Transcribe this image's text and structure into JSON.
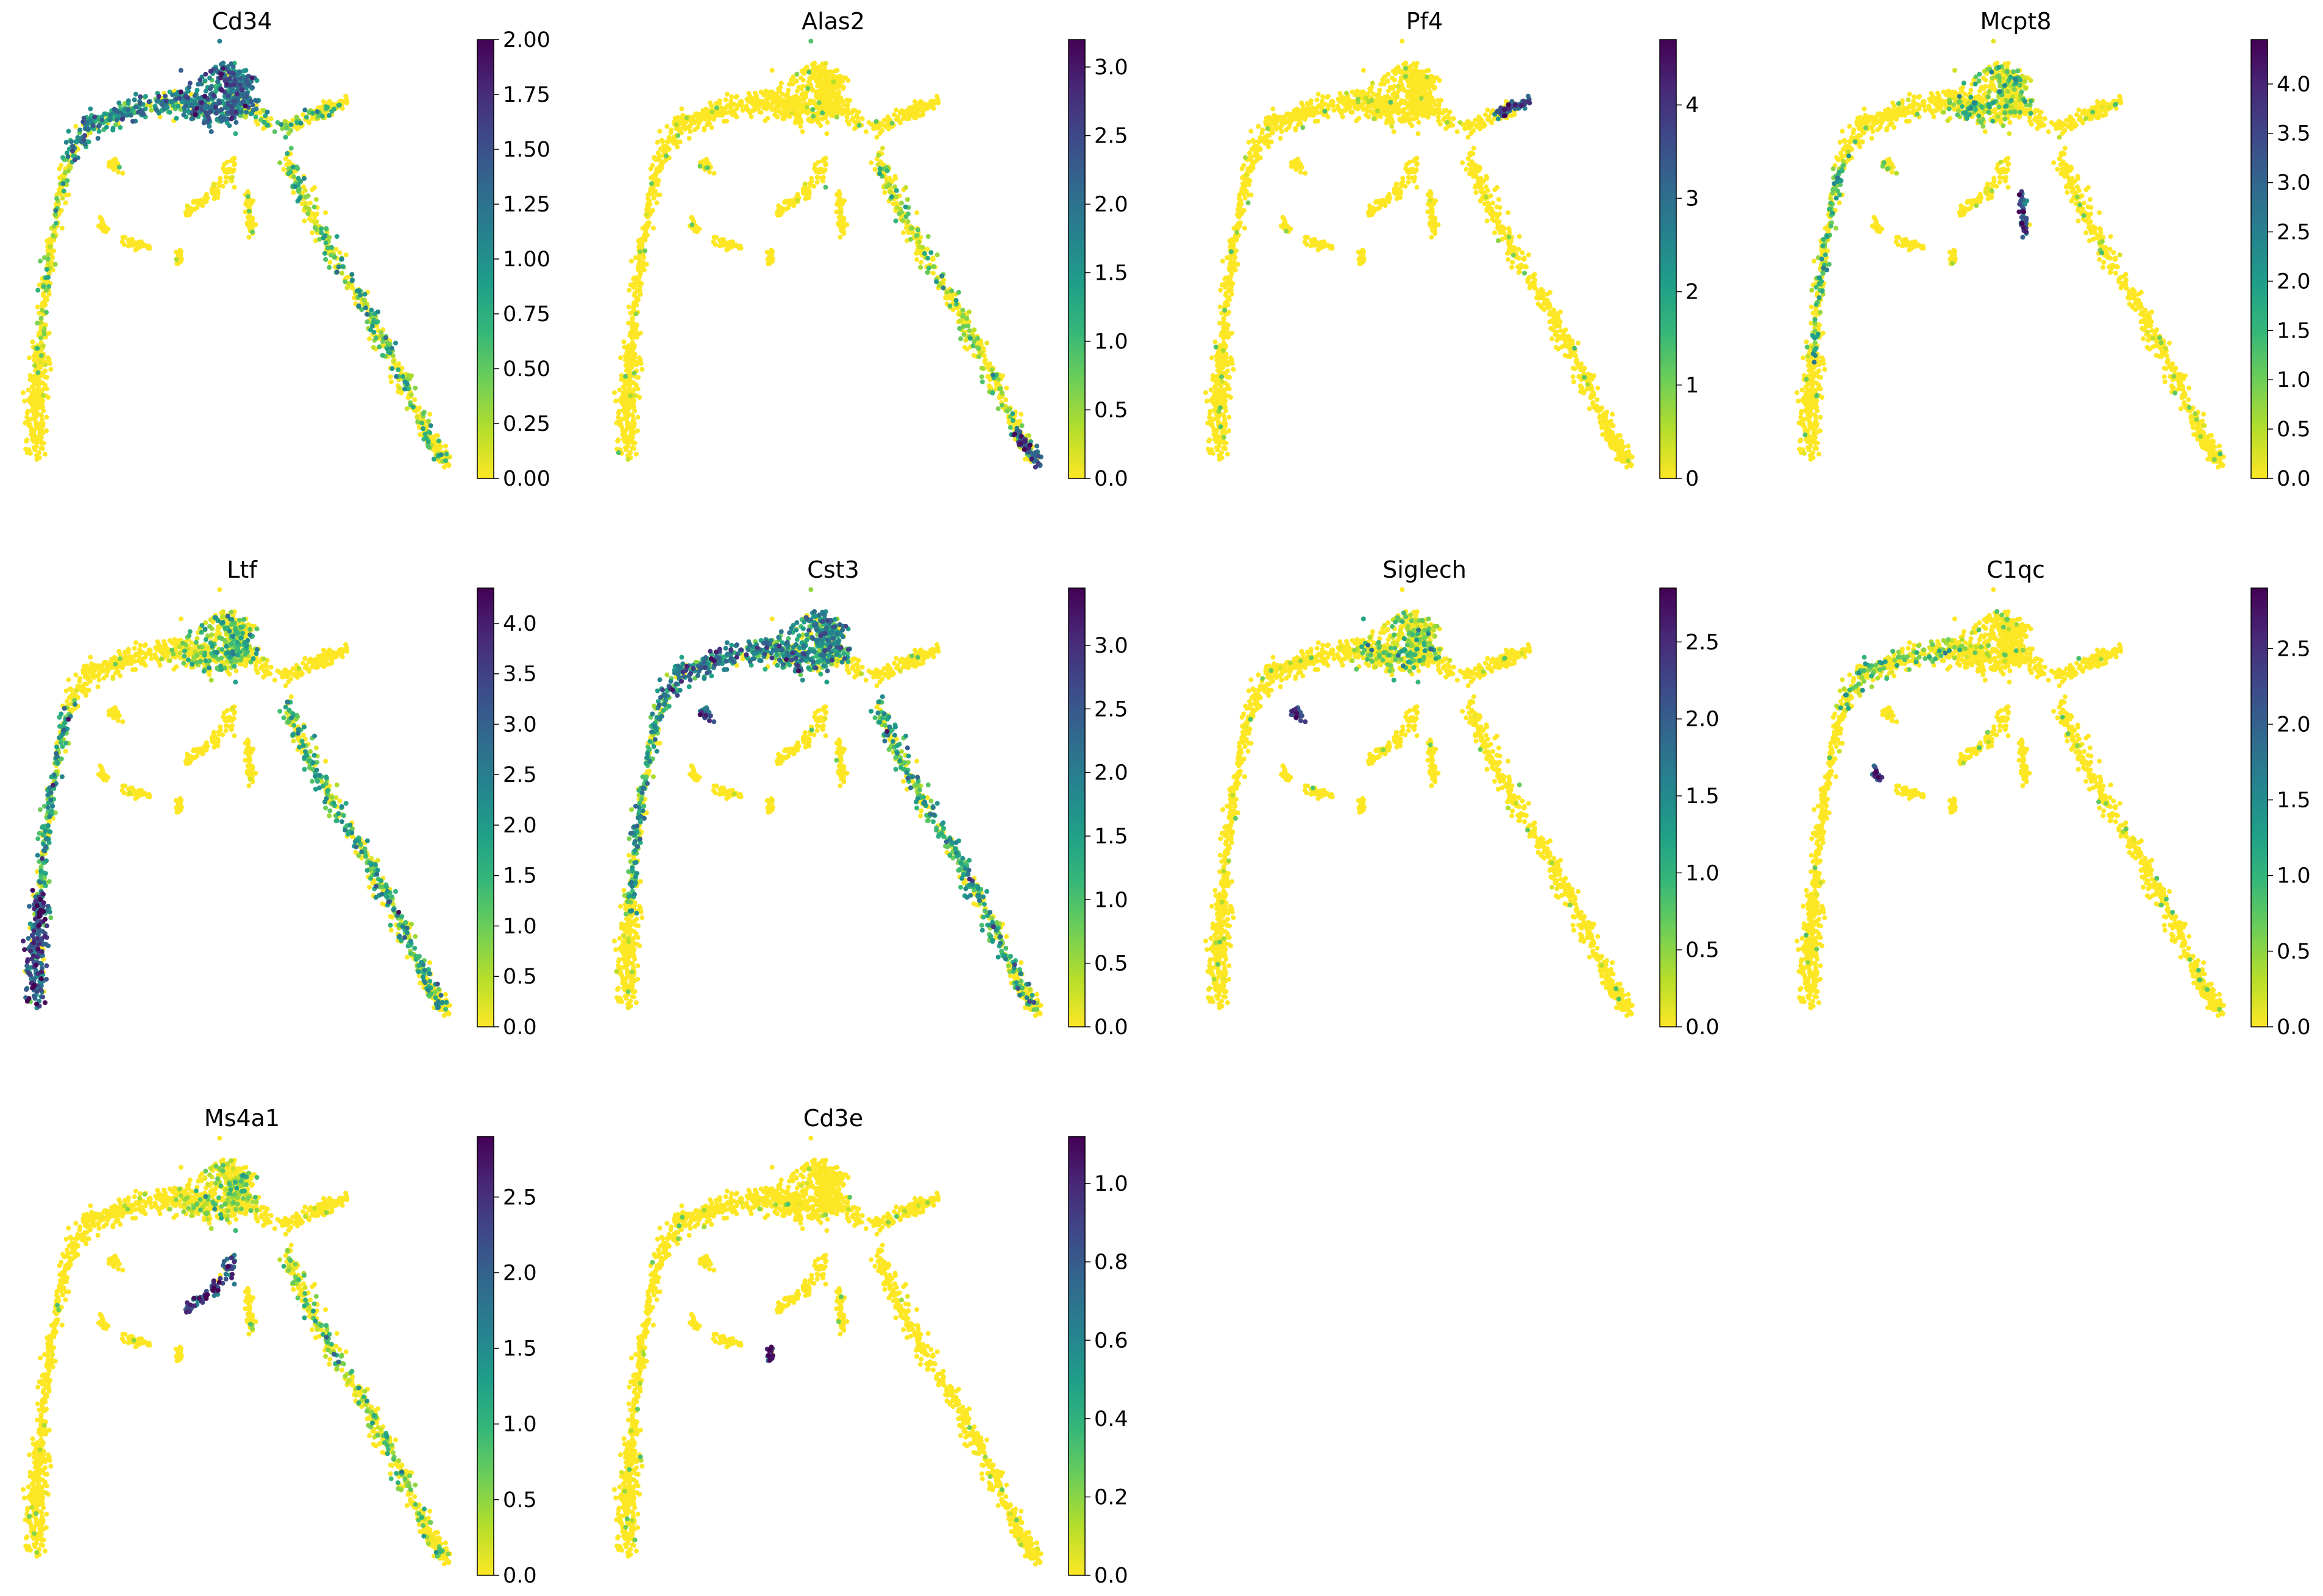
{
  "figure": {
    "colormap": "viridis_r",
    "colormap_stops": [
      "#fde725",
      "#b5de2b",
      "#6ece58",
      "#35b779",
      "#1f9e89",
      "#26828e",
      "#31688e",
      "#3e4989",
      "#482878",
      "#440154"
    ]
  },
  "chart_data": [
    {
      "type": "scatter",
      "title": "Cd34",
      "embedding": "trajectory",
      "color_range": [
        0,
        2.0
      ],
      "ticks": [
        "0.00",
        "0.25",
        "0.50",
        "0.75",
        "1.00",
        "1.25",
        "1.50",
        "1.75",
        "2.00"
      ],
      "tick_values": [
        0,
        0.25,
        0.5,
        0.75,
        1.0,
        1.25,
        1.5,
        1.75,
        2.0
      ],
      "hotspots": [
        {
          "region": "hub",
          "level": 0.55
        },
        {
          "region": "upper-left-arc",
          "level": 0.45
        },
        {
          "region": "right-short-branch",
          "level": 0.2
        },
        {
          "region": "right-long-branch",
          "level": 0.2
        },
        {
          "region": "left-branch",
          "level": 0.12
        }
      ]
    },
    {
      "type": "scatter",
      "title": "Alas2",
      "embedding": "trajectory",
      "color_range": [
        0,
        3.2
      ],
      "ticks": [
        "0.0",
        "0.5",
        "1.0",
        "1.5",
        "2.0",
        "2.5",
        "3.0"
      ],
      "tick_values": [
        0,
        0.5,
        1.0,
        1.5,
        2.0,
        2.5,
        3.0
      ],
      "hotspots": [
        {
          "region": "right-long-tip",
          "level": 0.7
        },
        {
          "region": "right-long-branch",
          "level": 0.08
        }
      ]
    },
    {
      "type": "scatter",
      "title": "Pf4",
      "embedding": "trajectory",
      "color_range": [
        0,
        4.7
      ],
      "ticks": [
        "0",
        "1",
        "2",
        "3",
        "4"
      ],
      "tick_values": [
        0,
        1,
        2,
        3,
        4
      ],
      "hotspots": [
        {
          "region": "right-short-tip",
          "level": 0.65
        }
      ]
    },
    {
      "type": "scatter",
      "title": "Mcpt8",
      "embedding": "trajectory",
      "color_range": [
        0,
        4.45
      ],
      "ticks": [
        "0.0",
        "0.5",
        "1.0",
        "1.5",
        "2.0",
        "2.5",
        "3.0",
        "3.5",
        "4.0"
      ],
      "tick_values": [
        0,
        0.5,
        1.0,
        1.5,
        2.0,
        2.5,
        3.0,
        3.5,
        4.0
      ],
      "hotspots": [
        {
          "region": "island-e",
          "level": 0.75
        },
        {
          "region": "hub",
          "level": 0.15
        },
        {
          "region": "left-branch",
          "level": 0.2
        }
      ]
    },
    {
      "type": "scatter",
      "title": "Ltf",
      "embedding": "trajectory",
      "color_range": [
        0,
        4.35
      ],
      "ticks": [
        "0.0",
        "0.5",
        "1.0",
        "1.5",
        "2.0",
        "2.5",
        "3.0",
        "3.5",
        "4.0"
      ],
      "tick_values": [
        0,
        0.5,
        1.0,
        1.5,
        2.0,
        2.5,
        3.0,
        3.5,
        4.0
      ],
      "hotspots": [
        {
          "region": "left-tip",
          "level": 0.7
        },
        {
          "region": "left-branch",
          "level": 0.35
        },
        {
          "region": "right-long-branch",
          "level": 0.3
        },
        {
          "region": "hub",
          "level": 0.2
        }
      ]
    },
    {
      "type": "scatter",
      "title": "Cst3",
      "embedding": "trajectory",
      "color_range": [
        0,
        3.45
      ],
      "ticks": [
        "0.0",
        "0.5",
        "1.0",
        "1.5",
        "2.0",
        "2.5",
        "3.0"
      ],
      "tick_values": [
        0,
        0.5,
        1.0,
        1.5,
        2.0,
        2.5,
        3.0
      ],
      "hotspots": [
        {
          "region": "upper-left-arc",
          "level": 0.5
        },
        {
          "region": "hub",
          "level": 0.45
        },
        {
          "region": "right-long-branch",
          "level": 0.35
        },
        {
          "region": "left-branch",
          "level": 0.35
        },
        {
          "region": "island-a",
          "level": 0.6
        }
      ]
    },
    {
      "type": "scatter",
      "title": "Siglech",
      "embedding": "trajectory",
      "color_range": [
        0,
        2.85
      ],
      "ticks": [
        "0.0",
        "0.5",
        "1.0",
        "1.5",
        "2.0",
        "2.5"
      ],
      "tick_values": [
        0,
        0.5,
        1.0,
        1.5,
        2.0,
        2.5
      ],
      "hotspots": [
        {
          "region": "island-a",
          "level": 0.75
        },
        {
          "region": "hub",
          "level": 0.12
        }
      ]
    },
    {
      "type": "scatter",
      "title": "C1qc",
      "embedding": "trajectory",
      "color_range": [
        0,
        2.9
      ],
      "ticks": [
        "0.0",
        "0.5",
        "1.0",
        "1.5",
        "2.0",
        "2.5"
      ],
      "tick_values": [
        0,
        0.5,
        1.0,
        1.5,
        2.0,
        2.5
      ],
      "hotspots": [
        {
          "region": "island-b",
          "level": 0.8
        },
        {
          "region": "upper-left-arc",
          "level": 0.15
        }
      ]
    },
    {
      "type": "scatter",
      "title": "Ms4a1",
      "embedding": "trajectory",
      "color_range": [
        0,
        2.9
      ],
      "ticks": [
        "0.0",
        "0.5",
        "1.0",
        "1.5",
        "2.0",
        "2.5"
      ],
      "tick_values": [
        0,
        0.5,
        1.0,
        1.5,
        2.0,
        2.5
      ],
      "hotspots": [
        {
          "region": "island-d",
          "level": 0.75
        },
        {
          "region": "right-long-branch",
          "level": 0.15
        },
        {
          "region": "hub",
          "level": 0.1
        }
      ]
    },
    {
      "type": "scatter",
      "title": "Cd3e",
      "embedding": "trajectory",
      "color_range": [
        0,
        1.12
      ],
      "ticks": [
        "0.0",
        "0.2",
        "0.4",
        "0.6",
        "0.8",
        "1.0"
      ],
      "tick_values": [
        0,
        0.2,
        0.4,
        0.6,
        0.8,
        1.0
      ],
      "hotspots": [
        {
          "region": "island-c",
          "level": 0.8
        }
      ]
    }
  ]
}
